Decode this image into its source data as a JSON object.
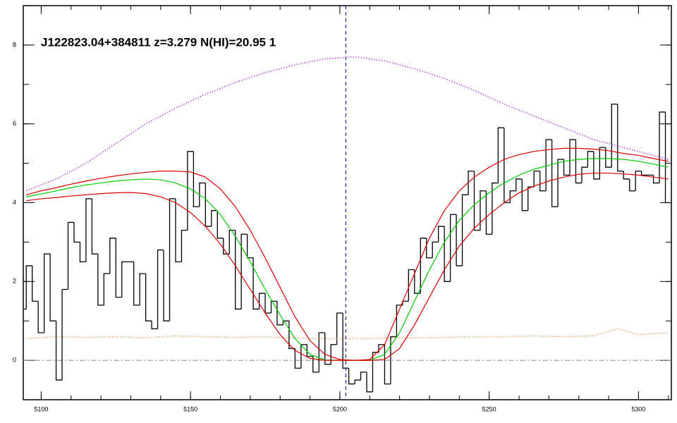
{
  "chart_data": {
    "type": "spectrum",
    "title": "J122823.04+384811 z=3.279 N(HI)=20.95 1",
    "xlim": [
      5094,
      5311
    ],
    "ylim": [
      -1,
      9
    ],
    "xticks": [
      5100,
      5150,
      5200,
      5250,
      5300
    ],
    "yticks": [
      0,
      2,
      4,
      6,
      8
    ],
    "vline": {
      "value": 5202,
      "color": "#2222bb"
    },
    "hline": {
      "value": 0,
      "color": "#888888"
    },
    "series": [
      {
        "style": "steps",
        "color": "#000000",
        "x": [
          5094,
          5096,
          5098,
          5100,
          5102,
          5104,
          5106,
          5108,
          5110,
          5112,
          5114,
          5116,
          5118,
          5120,
          5122,
          5124,
          5126,
          5128,
          5130,
          5132,
          5134,
          5136,
          5138,
          5140,
          5142,
          5144,
          5146,
          5148,
          5150,
          5152,
          5154,
          5156,
          5158,
          5160,
          5162,
          5164,
          5166,
          5168,
          5170,
          5172,
          5174,
          5176,
          5178,
          5180,
          5182,
          5184,
          5186,
          5188,
          5190,
          5192,
          5194,
          5196,
          5198,
          5200,
          5202,
          5204,
          5206,
          5208,
          5210,
          5212,
          5214,
          5216,
          5218,
          5220,
          5222,
          5224,
          5226,
          5228,
          5230,
          5232,
          5234,
          5236,
          5238,
          5240,
          5242,
          5244,
          5246,
          5248,
          5250,
          5252,
          5254,
          5256,
          5258,
          5260,
          5262,
          5264,
          5266,
          5268,
          5270,
          5272,
          5274,
          5276,
          5278,
          5280,
          5282,
          5284,
          5286,
          5288,
          5290,
          5292,
          5294,
          5296,
          5298,
          5300,
          5302,
          5304,
          5306,
          5308,
          5310
        ],
        "values": [
          1.3,
          2.4,
          1.5,
          0.7,
          2.7,
          1.0,
          -0.5,
          1.8,
          3.5,
          3.0,
          2.5,
          4.1,
          2.7,
          1.4,
          2.2,
          3.1,
          1.6,
          2.5,
          2.5,
          1.4,
          2.2,
          1.0,
          0.8,
          2.8,
          1.0,
          4.1,
          2.5,
          3.3,
          5.3,
          3.9,
          4.5,
          3.4,
          3.8,
          3.1,
          2.7,
          3.3,
          1.3,
          3.2,
          2.6,
          1.3,
          1.7,
          1.2,
          1.5,
          0.9,
          1.0,
          0.3,
          -0.2,
          0.4,
          0.1,
          -0.3,
          0.7,
          -0.1,
          0.4,
          1.2,
          -0.2,
          -0.6,
          -0.5,
          -0.3,
          -0.8,
          0.2,
          0.4,
          -0.6,
          0.6,
          1.4,
          1.5,
          2.3,
          1.7,
          3.1,
          2.6,
          3.0,
          3.4,
          2.0,
          3.7,
          2.4,
          4.2,
          4.8,
          3.3,
          4.3,
          3.2,
          4.5,
          5.9,
          4.0,
          4.3,
          4.6,
          3.8,
          4.4,
          4.8,
          4.3,
          5.6,
          3.9,
          5.1,
          4.7,
          5.6,
          4.5,
          4.9,
          5.3,
          4.6,
          5.4,
          4.9,
          6.5,
          4.8,
          4.6,
          4.3,
          4.8,
          4.7,
          4.7,
          4.5,
          6.3,
          4.0
        ]
      },
      {
        "style": "dotted",
        "color": "#aa22dd",
        "x": [
          5095,
          5105,
          5115,
          5125,
          5135,
          5145,
          5155,
          5165,
          5175,
          5185,
          5195,
          5205,
          5215,
          5225,
          5235,
          5245,
          5255,
          5265,
          5275,
          5285,
          5295,
          5305,
          5310
        ],
        "values": [
          4.3,
          4.6,
          5.0,
          5.5,
          6.0,
          6.4,
          6.75,
          7.05,
          7.3,
          7.5,
          7.65,
          7.7,
          7.6,
          7.4,
          7.15,
          6.85,
          6.5,
          6.2,
          5.9,
          5.6,
          5.4,
          5.2,
          5.1
        ]
      },
      {
        "style": "dotted",
        "color": "#e8944a",
        "x": [
          5095,
          5105,
          5115,
          5125,
          5135,
          5145,
          5155,
          5165,
          5175,
          5185,
          5195,
          5205,
          5215,
          5225,
          5235,
          5245,
          5255,
          5265,
          5275,
          5285,
          5293,
          5300,
          5305,
          5310
        ],
        "values": [
          0.55,
          0.6,
          0.58,
          0.6,
          0.57,
          0.62,
          0.6,
          0.58,
          0.6,
          0.57,
          0.55,
          0.55,
          0.56,
          0.57,
          0.58,
          0.6,
          0.6,
          0.62,
          0.6,
          0.62,
          0.8,
          0.65,
          0.68,
          0.7
        ]
      },
      {
        "style": "solid",
        "color": "#00cc00",
        "x": [
          5095,
          5100,
          5105,
          5110,
          5115,
          5120,
          5125,
          5130,
          5135,
          5140,
          5145,
          5150,
          5155,
          5160,
          5165,
          5170,
          5175,
          5180,
          5185,
          5190,
          5195,
          5200,
          5205,
          5210,
          5215,
          5220,
          5225,
          5230,
          5235,
          5240,
          5245,
          5250,
          5255,
          5260,
          5265,
          5270,
          5275,
          5280,
          5285,
          5290,
          5295,
          5300,
          5305,
          5310
        ],
        "values": [
          4.15,
          4.22,
          4.3,
          4.38,
          4.45,
          4.5,
          4.55,
          4.58,
          4.6,
          4.58,
          4.5,
          4.35,
          4.1,
          3.7,
          3.15,
          2.5,
          1.8,
          1.15,
          0.55,
          0.15,
          0.01,
          0,
          0,
          0,
          0.15,
          0.7,
          1.5,
          2.3,
          3.0,
          3.55,
          3.95,
          4.25,
          4.5,
          4.7,
          4.85,
          4.95,
          5.05,
          5.1,
          5.12,
          5.12,
          5.1,
          5.05,
          4.98,
          4.9
        ]
      },
      {
        "style": "solid",
        "color": "#dd0000",
        "x": [
          5095,
          5100,
          5105,
          5110,
          5115,
          5120,
          5125,
          5130,
          5135,
          5140,
          5145,
          5150,
          5155,
          5160,
          5165,
          5170,
          5175,
          5180,
          5185,
          5190,
          5195,
          5200,
          5205,
          5210,
          5215,
          5220,
          5225,
          5230,
          5235,
          5240,
          5245,
          5250,
          5255,
          5260,
          5265,
          5270,
          5275,
          5280,
          5285,
          5290,
          5295,
          5300,
          5305,
          5310
        ],
        "values": [
          4.2,
          4.3,
          4.38,
          4.47,
          4.55,
          4.62,
          4.68,
          4.73,
          4.77,
          4.8,
          4.8,
          4.78,
          4.65,
          4.35,
          3.9,
          3.3,
          2.6,
          1.85,
          1.1,
          0.5,
          0.15,
          0.02,
          0,
          0.02,
          0.4,
          1.3,
          2.2,
          3.1,
          3.8,
          4.3,
          4.65,
          4.9,
          5.1,
          5.22,
          5.3,
          5.35,
          5.38,
          5.38,
          5.36,
          5.32,
          5.25,
          5.2,
          5.12,
          5.05
        ]
      },
      {
        "style": "solid",
        "color": "#dd0000",
        "x": [
          5095,
          5100,
          5105,
          5110,
          5115,
          5120,
          5125,
          5130,
          5135,
          5140,
          5145,
          5150,
          5155,
          5160,
          5165,
          5170,
          5175,
          5180,
          5185,
          5190,
          5195,
          5200,
          5205,
          5210,
          5215,
          5220,
          5225,
          5230,
          5235,
          5240,
          5245,
          5250,
          5255,
          5260,
          5265,
          5270,
          5275,
          5280,
          5285,
          5290,
          5295,
          5300,
          5305,
          5310
        ],
        "values": [
          4.05,
          4.1,
          4.13,
          4.17,
          4.2,
          4.23,
          4.25,
          4.26,
          4.23,
          4.15,
          4.0,
          3.75,
          3.4,
          2.95,
          2.4,
          1.8,
          1.2,
          0.65,
          0.25,
          0.05,
          0,
          0,
          0,
          0,
          0.02,
          0.3,
          0.9,
          1.6,
          2.3,
          2.9,
          3.35,
          3.7,
          4.0,
          4.25,
          4.42,
          4.55,
          4.65,
          4.72,
          4.75,
          4.75,
          4.73,
          4.7,
          4.65,
          4.6
        ]
      }
    ]
  }
}
